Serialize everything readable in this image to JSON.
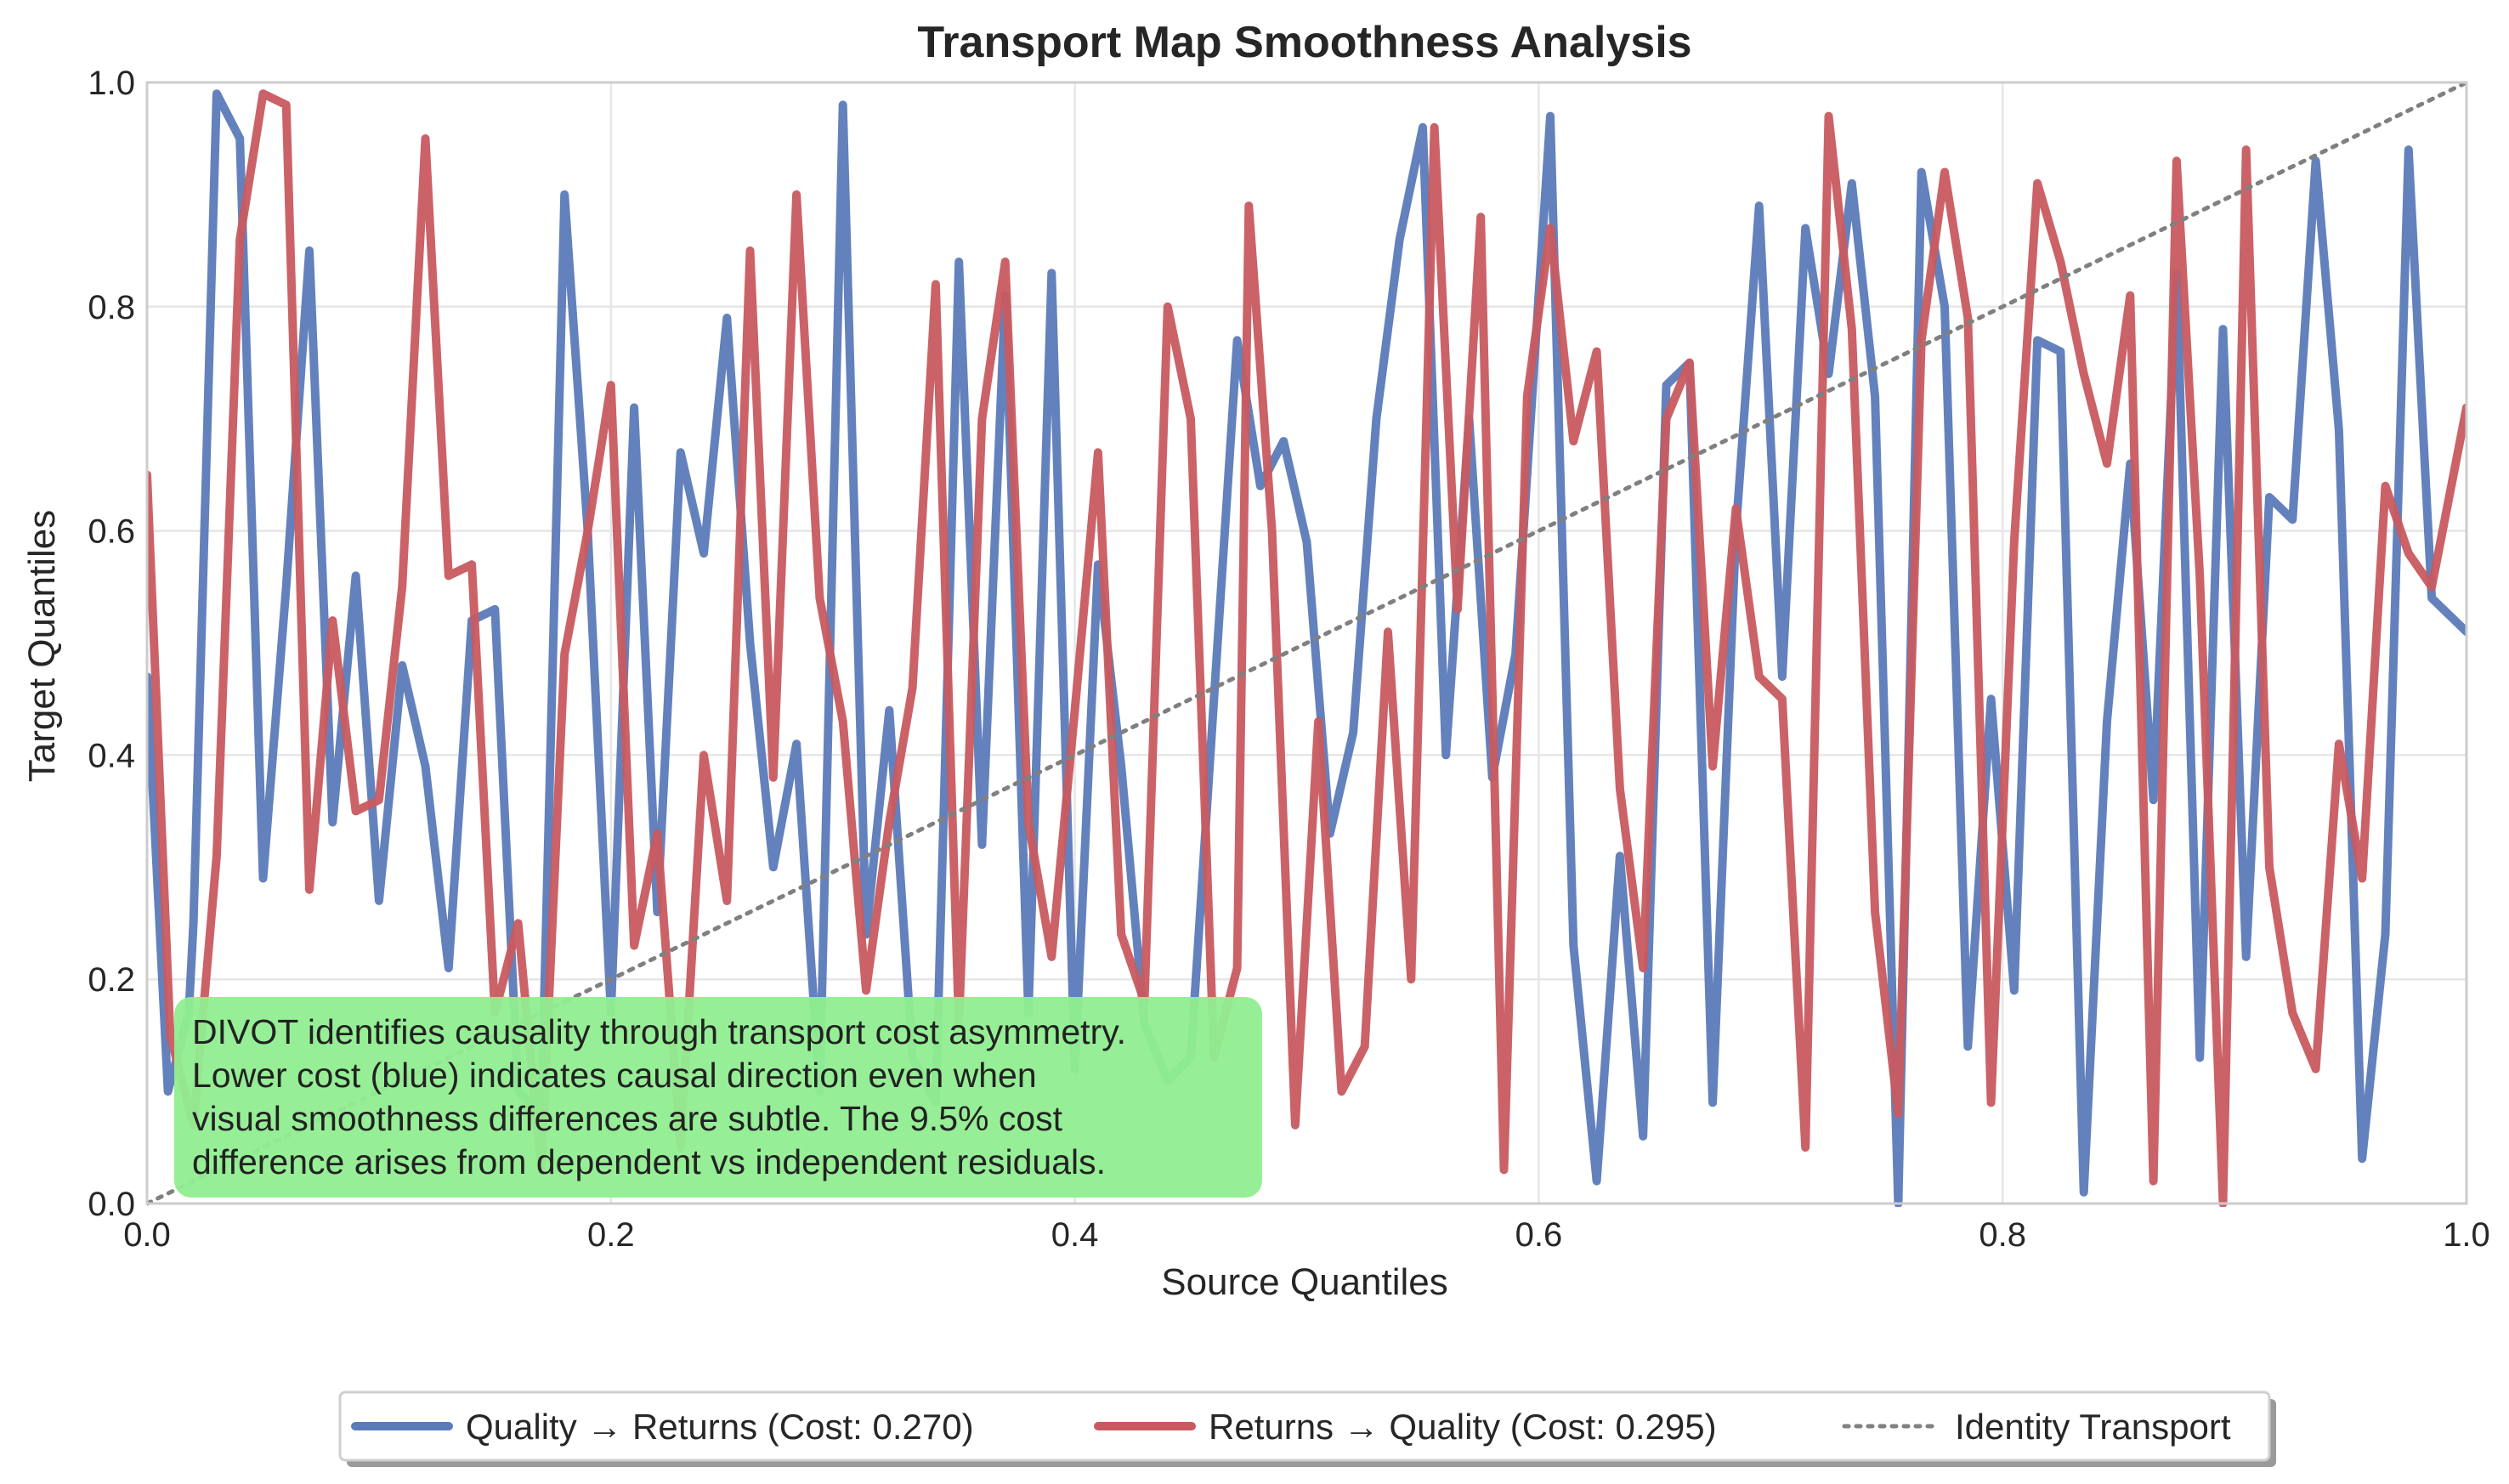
{
  "chart_data": {
    "type": "line",
    "title": "Transport Map Smoothness Analysis",
    "xlabel": "Source Quantiles",
    "ylabel": "Target Quantiles",
    "xlim": [
      0,
      1
    ],
    "ylim": [
      0,
      1
    ],
    "x_ticks": [
      "0.0",
      "0.2",
      "0.4",
      "0.6",
      "0.8",
      "1.0"
    ],
    "y_ticks": [
      "0.0",
      "0.2",
      "0.4",
      "0.6",
      "0.8",
      "1.0"
    ],
    "grid": true,
    "legend_position": "bottom-center",
    "annotation": {
      "lines": [
        "DIVOT identifies causality through transport cost asymmetry.",
        "Lower cost (blue) indicates causal direction even when",
        "visual smoothness differences are subtle. The 9.5% cost",
        "difference arises from dependent vs independent residuals."
      ],
      "background_color": "#90ee90"
    },
    "series": [
      {
        "name": "Quality → Returns (Cost: 0.270)",
        "color": "#5b7ab8",
        "style": "solid",
        "points": [
          [
            0.0,
            0.47
          ],
          [
            0.009,
            0.1
          ],
          [
            0.018,
            0.17
          ],
          [
            0.02,
            0.25
          ],
          [
            0.03,
            0.99
          ],
          [
            0.04,
            0.95
          ],
          [
            0.05,
            0.29
          ],
          [
            0.06,
            0.55
          ],
          [
            0.07,
            0.85
          ],
          [
            0.08,
            0.34
          ],
          [
            0.09,
            0.56
          ],
          [
            0.1,
            0.27
          ],
          [
            0.11,
            0.48
          ],
          [
            0.12,
            0.39
          ],
          [
            0.13,
            0.21
          ],
          [
            0.14,
            0.52
          ],
          [
            0.15,
            0.53
          ],
          [
            0.16,
            0.1
          ],
          [
            0.17,
            0.08
          ],
          [
            0.18,
            0.9
          ],
          [
            0.19,
            0.6
          ],
          [
            0.2,
            0.17
          ],
          [
            0.21,
            0.71
          ],
          [
            0.22,
            0.26
          ],
          [
            0.23,
            0.67
          ],
          [
            0.24,
            0.58
          ],
          [
            0.25,
            0.79
          ],
          [
            0.26,
            0.5
          ],
          [
            0.27,
            0.3
          ],
          [
            0.28,
            0.41
          ],
          [
            0.29,
            0.1
          ],
          [
            0.3,
            0.98
          ],
          [
            0.31,
            0.24
          ],
          [
            0.32,
            0.44
          ],
          [
            0.33,
            0.13
          ],
          [
            0.34,
            0.09
          ],
          [
            0.35,
            0.84
          ],
          [
            0.36,
            0.32
          ],
          [
            0.37,
            0.81
          ],
          [
            0.38,
            0.17
          ],
          [
            0.39,
            0.83
          ],
          [
            0.4,
            0.12
          ],
          [
            0.41,
            0.57
          ],
          [
            0.42,
            0.39
          ],
          [
            0.43,
            0.16
          ],
          [
            0.44,
            0.11
          ],
          [
            0.45,
            0.13
          ],
          [
            0.47,
            0.77
          ],
          [
            0.48,
            0.64
          ],
          [
            0.49,
            0.68
          ],
          [
            0.5,
            0.59
          ],
          [
            0.51,
            0.33
          ],
          [
            0.52,
            0.42
          ],
          [
            0.53,
            0.7
          ],
          [
            0.54,
            0.86
          ],
          [
            0.55,
            0.96
          ],
          [
            0.56,
            0.4
          ],
          [
            0.57,
            0.7
          ],
          [
            0.58,
            0.38
          ],
          [
            0.59,
            0.49
          ],
          [
            0.605,
            0.97
          ],
          [
            0.615,
            0.23
          ],
          [
            0.625,
            0.02
          ],
          [
            0.635,
            0.31
          ],
          [
            0.645,
            0.06
          ],
          [
            0.655,
            0.73
          ],
          [
            0.665,
            0.75
          ],
          [
            0.675,
            0.09
          ],
          [
            0.685,
            0.6
          ],
          [
            0.695,
            0.89
          ],
          [
            0.705,
            0.47
          ],
          [
            0.715,
            0.87
          ],
          [
            0.725,
            0.74
          ],
          [
            0.735,
            0.91
          ],
          [
            0.745,
            0.72
          ],
          [
            0.755,
            0.0
          ],
          [
            0.765,
            0.92
          ],
          [
            0.775,
            0.8
          ],
          [
            0.785,
            0.14
          ],
          [
            0.795,
            0.45
          ],
          [
            0.805,
            0.19
          ],
          [
            0.815,
            0.77
          ],
          [
            0.825,
            0.76
          ],
          [
            0.835,
            0.01
          ],
          [
            0.845,
            0.43
          ],
          [
            0.855,
            0.66
          ],
          [
            0.865,
            0.36
          ],
          [
            0.875,
            0.83
          ],
          [
            0.885,
            0.13
          ],
          [
            0.895,
            0.78
          ],
          [
            0.905,
            0.22
          ],
          [
            0.915,
            0.63
          ],
          [
            0.925,
            0.61
          ],
          [
            0.935,
            0.93
          ],
          [
            0.945,
            0.69
          ],
          [
            0.955,
            0.04
          ],
          [
            0.965,
            0.24
          ],
          [
            0.975,
            0.94
          ],
          [
            0.985,
            0.54
          ],
          [
            1.0,
            0.51
          ]
        ]
      },
      {
        "name": "Returns → Quality (Cost: 0.295)",
        "color": "#c85a5f",
        "style": "solid",
        "points": [
          [
            0.0,
            0.65
          ],
          [
            0.01,
            0.15
          ],
          [
            0.02,
            0.07
          ],
          [
            0.03,
            0.31
          ],
          [
            0.04,
            0.86
          ],
          [
            0.05,
            0.99
          ],
          [
            0.06,
            0.98
          ],
          [
            0.07,
            0.28
          ],
          [
            0.08,
            0.52
          ],
          [
            0.09,
            0.35
          ],
          [
            0.1,
            0.36
          ],
          [
            0.11,
            0.55
          ],
          [
            0.12,
            0.95
          ],
          [
            0.13,
            0.56
          ],
          [
            0.14,
            0.57
          ],
          [
            0.15,
            0.17
          ],
          [
            0.16,
            0.25
          ],
          [
            0.17,
            0.03
          ],
          [
            0.18,
            0.49
          ],
          [
            0.19,
            0.6
          ],
          [
            0.2,
            0.73
          ],
          [
            0.21,
            0.23
          ],
          [
            0.22,
            0.33
          ],
          [
            0.23,
            0.05
          ],
          [
            0.24,
            0.4
          ],
          [
            0.25,
            0.27
          ],
          [
            0.26,
            0.85
          ],
          [
            0.27,
            0.38
          ],
          [
            0.28,
            0.9
          ],
          [
            0.29,
            0.54
          ],
          [
            0.3,
            0.43
          ],
          [
            0.31,
            0.19
          ],
          [
            0.32,
            0.34
          ],
          [
            0.33,
            0.46
          ],
          [
            0.34,
            0.82
          ],
          [
            0.35,
            0.16
          ],
          [
            0.36,
            0.7
          ],
          [
            0.37,
            0.84
          ],
          [
            0.38,
            0.34
          ],
          [
            0.39,
            0.22
          ],
          [
            0.4,
            0.44
          ],
          [
            0.41,
            0.67
          ],
          [
            0.42,
            0.24
          ],
          [
            0.43,
            0.18
          ],
          [
            0.44,
            0.8
          ],
          [
            0.45,
            0.7
          ],
          [
            0.46,
            0.13
          ],
          [
            0.47,
            0.21
          ],
          [
            0.475,
            0.89
          ],
          [
            0.485,
            0.6
          ],
          [
            0.495,
            0.07
          ],
          [
            0.505,
            0.43
          ],
          [
            0.515,
            0.1
          ],
          [
            0.525,
            0.14
          ],
          [
            0.535,
            0.51
          ],
          [
            0.545,
            0.2
          ],
          [
            0.555,
            0.96
          ],
          [
            0.565,
            0.53
          ],
          [
            0.575,
            0.88
          ],
          [
            0.585,
            0.03
          ],
          [
            0.595,
            0.72
          ],
          [
            0.605,
            0.87
          ],
          [
            0.615,
            0.68
          ],
          [
            0.625,
            0.76
          ],
          [
            0.635,
            0.37
          ],
          [
            0.645,
            0.21
          ],
          [
            0.655,
            0.7
          ],
          [
            0.665,
            0.75
          ],
          [
            0.675,
            0.39
          ],
          [
            0.685,
            0.62
          ],
          [
            0.695,
            0.47
          ],
          [
            0.705,
            0.45
          ],
          [
            0.715,
            0.05
          ],
          [
            0.725,
            0.97
          ],
          [
            0.735,
            0.78
          ],
          [
            0.745,
            0.26
          ],
          [
            0.755,
            0.08
          ],
          [
            0.765,
            0.77
          ],
          [
            0.775,
            0.92
          ],
          [
            0.785,
            0.79
          ],
          [
            0.795,
            0.09
          ],
          [
            0.805,
            0.59
          ],
          [
            0.815,
            0.91
          ],
          [
            0.825,
            0.84
          ],
          [
            0.835,
            0.74
          ],
          [
            0.845,
            0.66
          ],
          [
            0.855,
            0.81
          ],
          [
            0.865,
            0.02
          ],
          [
            0.875,
            0.93
          ],
          [
            0.885,
            0.56
          ],
          [
            0.895,
            0.0
          ],
          [
            0.905,
            0.94
          ],
          [
            0.915,
            0.3
          ],
          [
            0.925,
            0.17
          ],
          [
            0.935,
            0.12
          ],
          [
            0.945,
            0.41
          ],
          [
            0.955,
            0.29
          ],
          [
            0.965,
            0.64
          ],
          [
            0.975,
            0.58
          ],
          [
            0.985,
            0.55
          ],
          [
            1.0,
            0.71
          ]
        ]
      },
      {
        "name": "Identity Transport",
        "color": "#808080",
        "style": "dotted",
        "points": [
          [
            0,
            0
          ],
          [
            1,
            1
          ]
        ]
      }
    ]
  }
}
